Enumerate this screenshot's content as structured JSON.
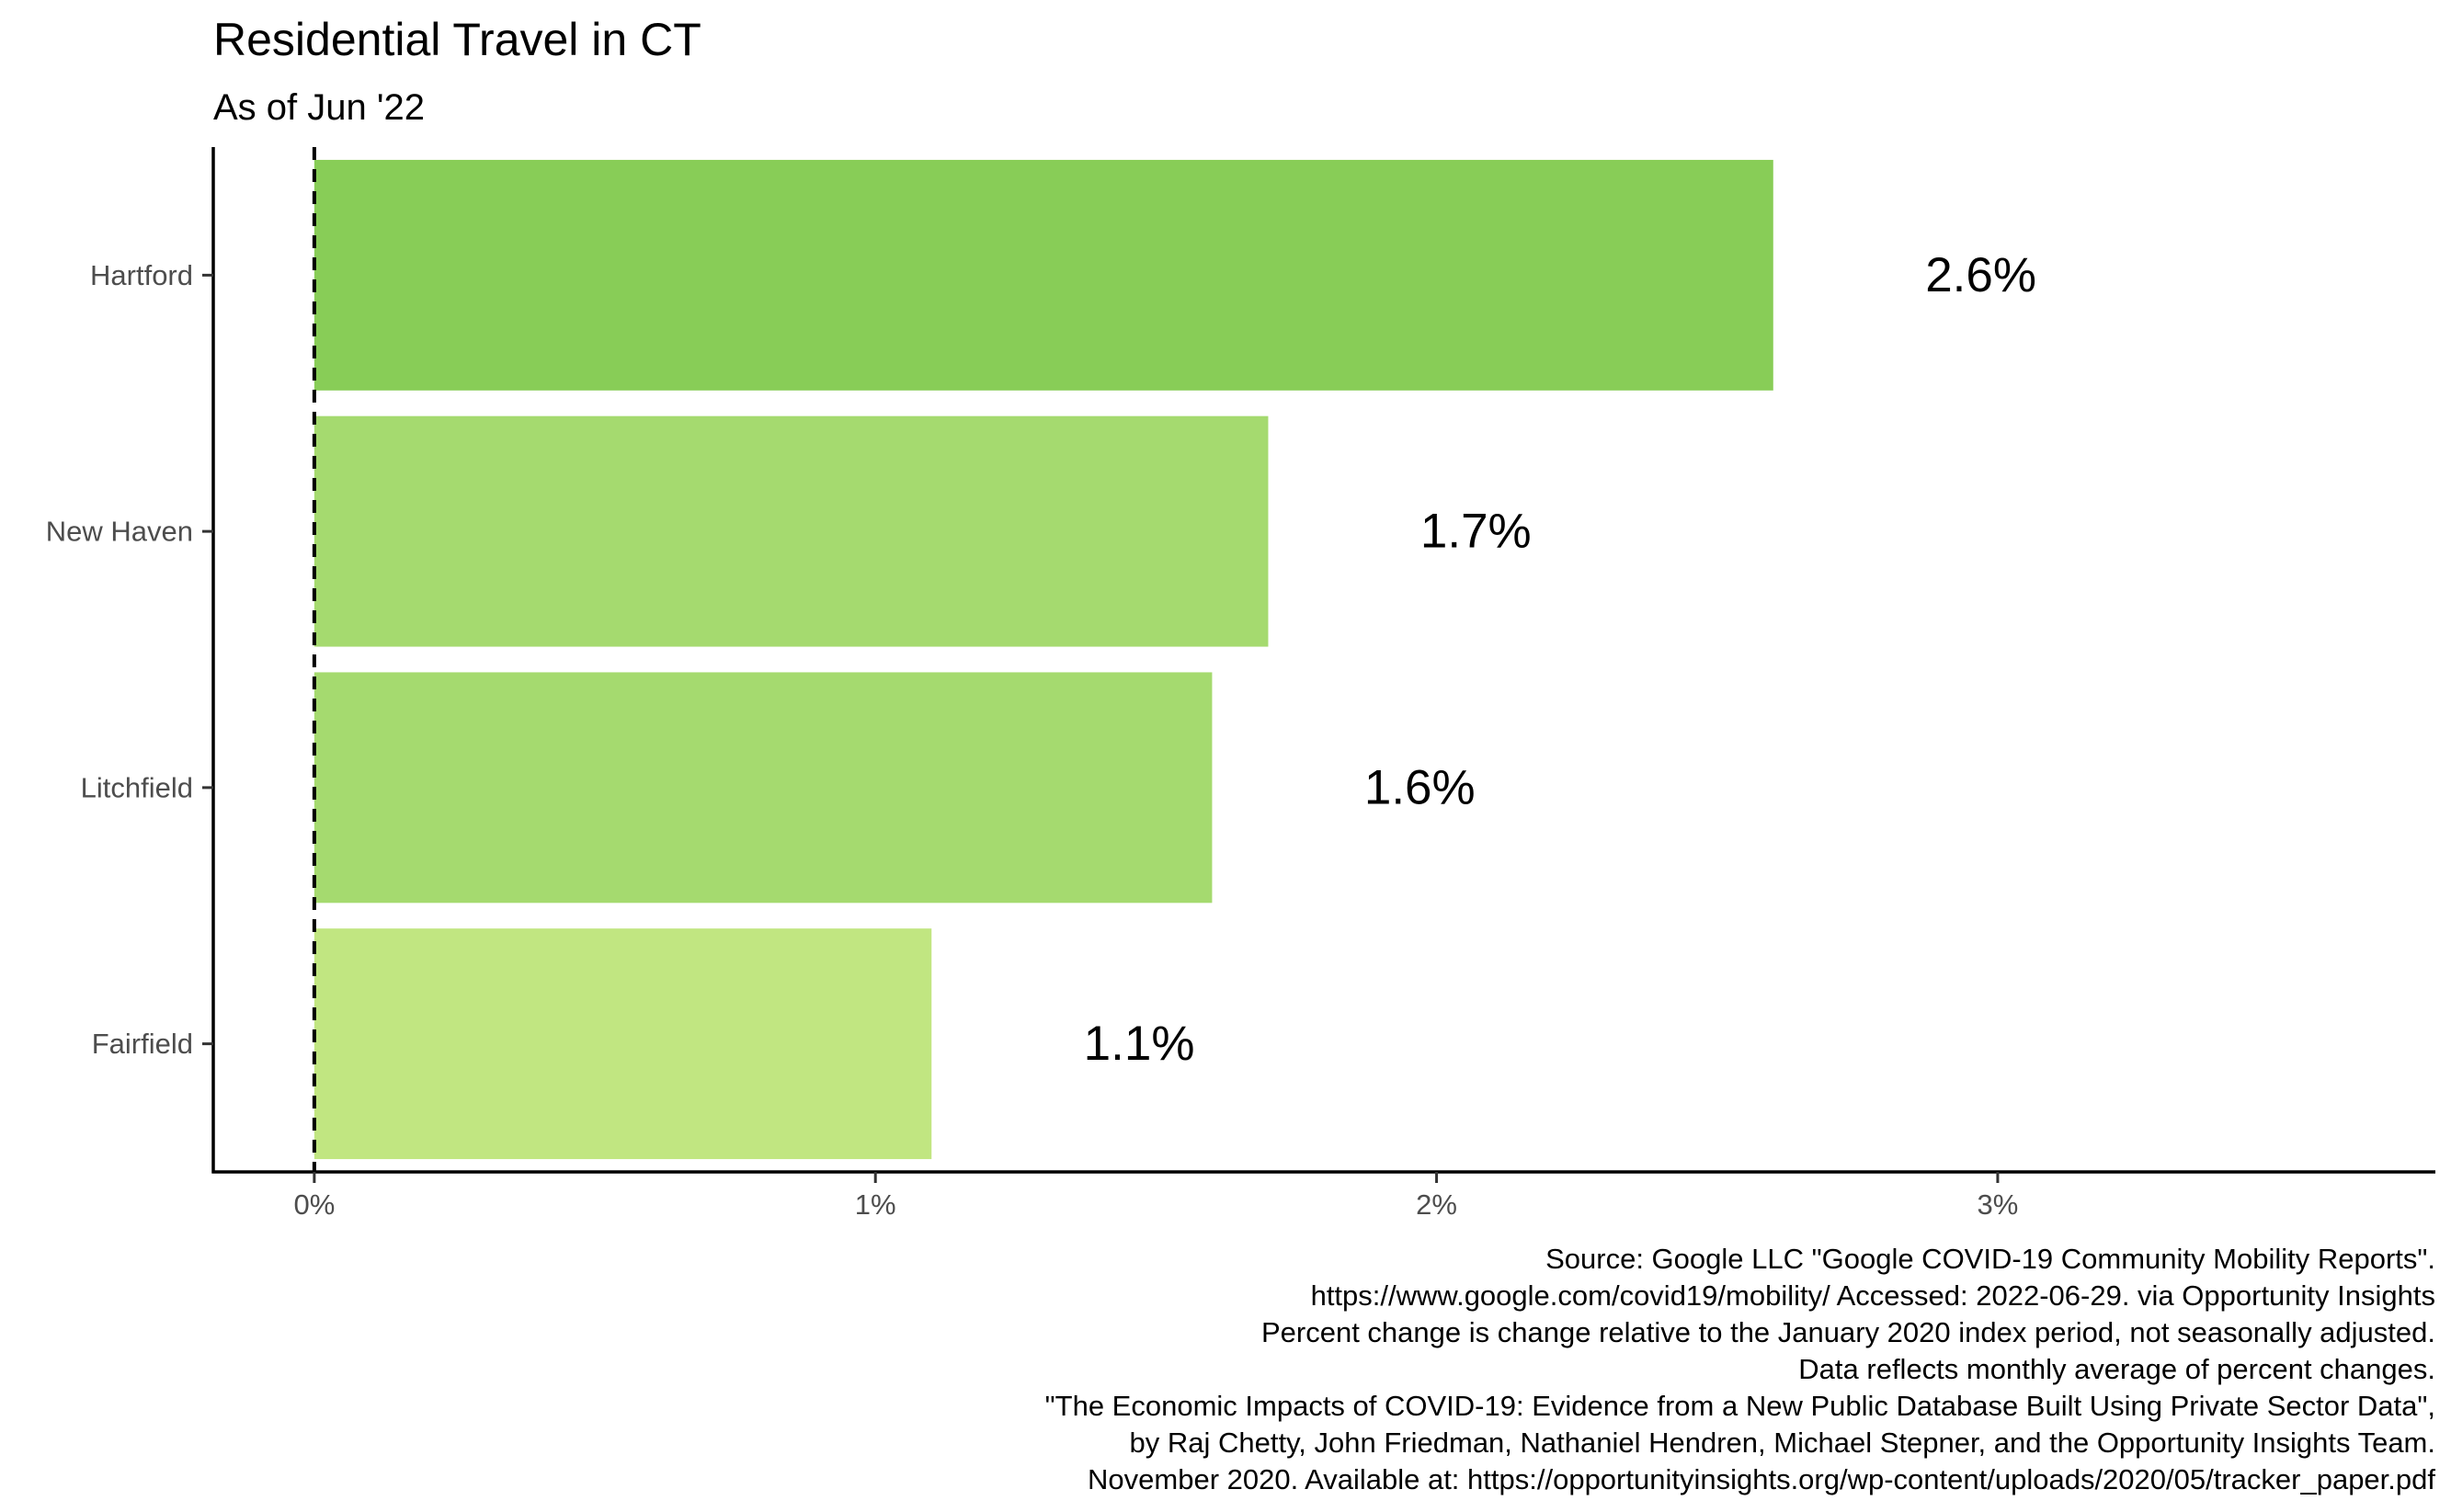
{
  "chart_data": {
    "type": "bar",
    "orientation": "horizontal",
    "title": "Residential Travel in CT",
    "subtitle": "As of Jun '22",
    "xlabel": "",
    "ylabel": "",
    "categories": [
      "Hartford",
      "New Haven",
      "Litchfield",
      "Fairfield"
    ],
    "values": [
      2.6,
      1.7,
      1.6,
      1.1
    ],
    "data_labels": [
      "2.6%",
      "1.7%",
      "1.6%",
      "1.1%"
    ],
    "bar_colors": [
      "#88cd57",
      "#a5da6f",
      "#a5da6f",
      "#c1e681"
    ],
    "xlim": [
      -0.18,
      3.78
    ],
    "x_ticks": [
      0,
      1,
      2,
      3
    ],
    "x_tick_labels": [
      "0%",
      "1%",
      "2%",
      "3%"
    ],
    "reference_line": {
      "value": 0,
      "style": "dashed"
    },
    "grid": false,
    "legend": "none",
    "caption": [
      "Source: Google LLC \"Google COVID-19 Community Mobility Reports\".",
      "https://www.google.com/covid19/mobility/ Accessed: 2022-06-29. via Opportunity Insights",
      "Percent change is change relative to the January 2020 index period, not seasonally adjusted.",
      "Data reflects monthly average of percent changes.",
      "\"The Economic Impacts of COVID-19: Evidence from a New Public Database Built Using Private Sector Data\",",
      "by Raj Chetty, John Friedman, Nathaniel Hendren, Michael Stepner, and the Opportunity Insights Team.",
      "November 2020. Available at: https://opportunityinsights.org/wp-content/uploads/2020/05/tracker_paper.pdf"
    ]
  }
}
